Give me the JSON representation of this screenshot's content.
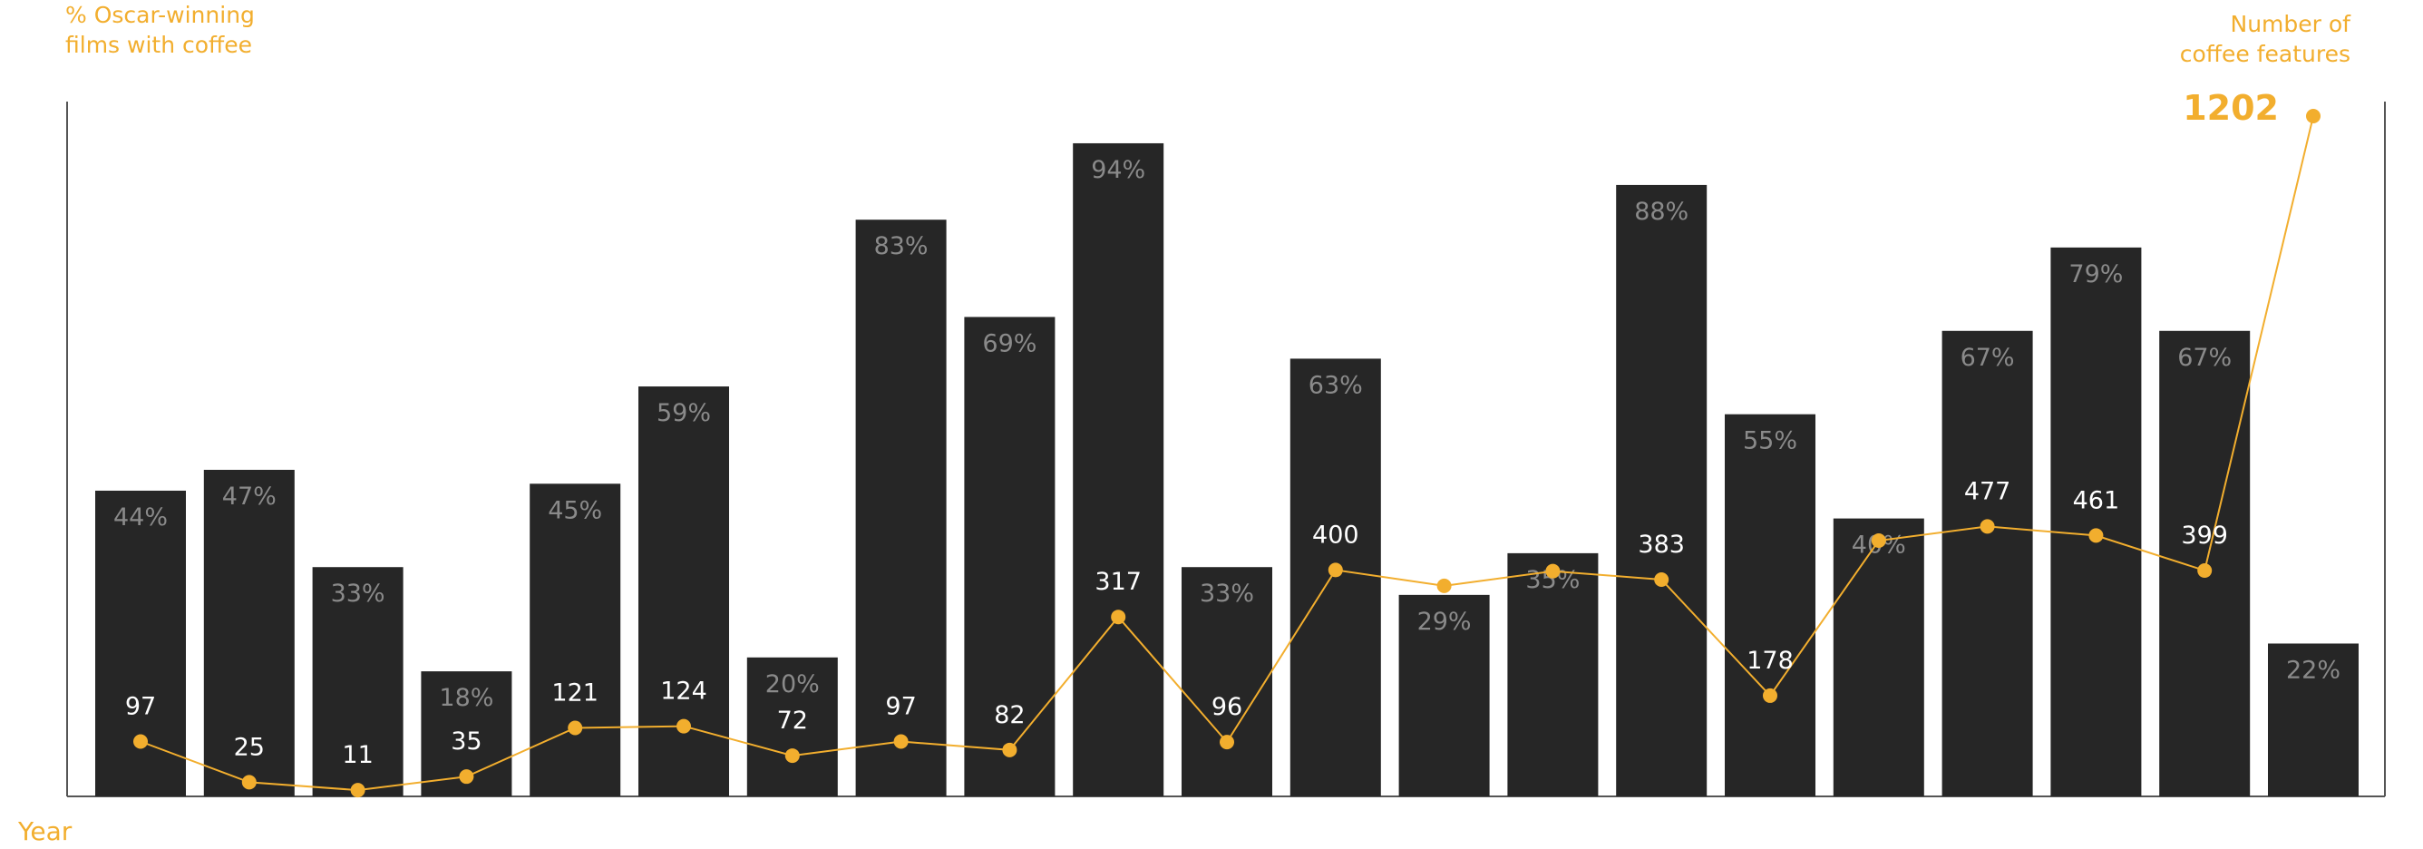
{
  "chart_data": {
    "type": "bar+line",
    "left_axis_title": [
      "% Oscar-winning",
      "films with coffee"
    ],
    "right_axis_title": [
      "Number of",
      "coffee features"
    ],
    "x_axis_title": "Year",
    "bar_series": {
      "name": "% Oscar-winning films with coffee",
      "unit": "%",
      "values": [
        44,
        47,
        33,
        18,
        45,
        59,
        20,
        83,
        69,
        94,
        33,
        63,
        29,
        35,
        88,
        55,
        40,
        67,
        79,
        67,
        22
      ],
      "ylim": [
        0,
        100
      ]
    },
    "line_series": {
      "name": "Number of coffee features",
      "values": [
        97,
        25,
        11,
        35,
        121,
        124,
        72,
        97,
        82,
        317,
        96,
        400,
        372,
        398,
        383,
        178,
        452,
        477,
        461,
        399,
        1202
      ],
      "labels": [
        "97",
        "25",
        "11",
        "35",
        "121",
        "124",
        "72",
        "97",
        "82",
        "317",
        "96",
        "400",
        "",
        "",
        "383",
        "178",
        "",
        "477",
        "461",
        "399",
        "1202"
      ],
      "ylim": [
        0,
        1300
      ]
    },
    "colors": {
      "bar": "#262626",
      "bar_label": "#8a8a8a",
      "line": "#F2AE2E",
      "line_label": "#ffffff",
      "axis": "#555555"
    }
  }
}
